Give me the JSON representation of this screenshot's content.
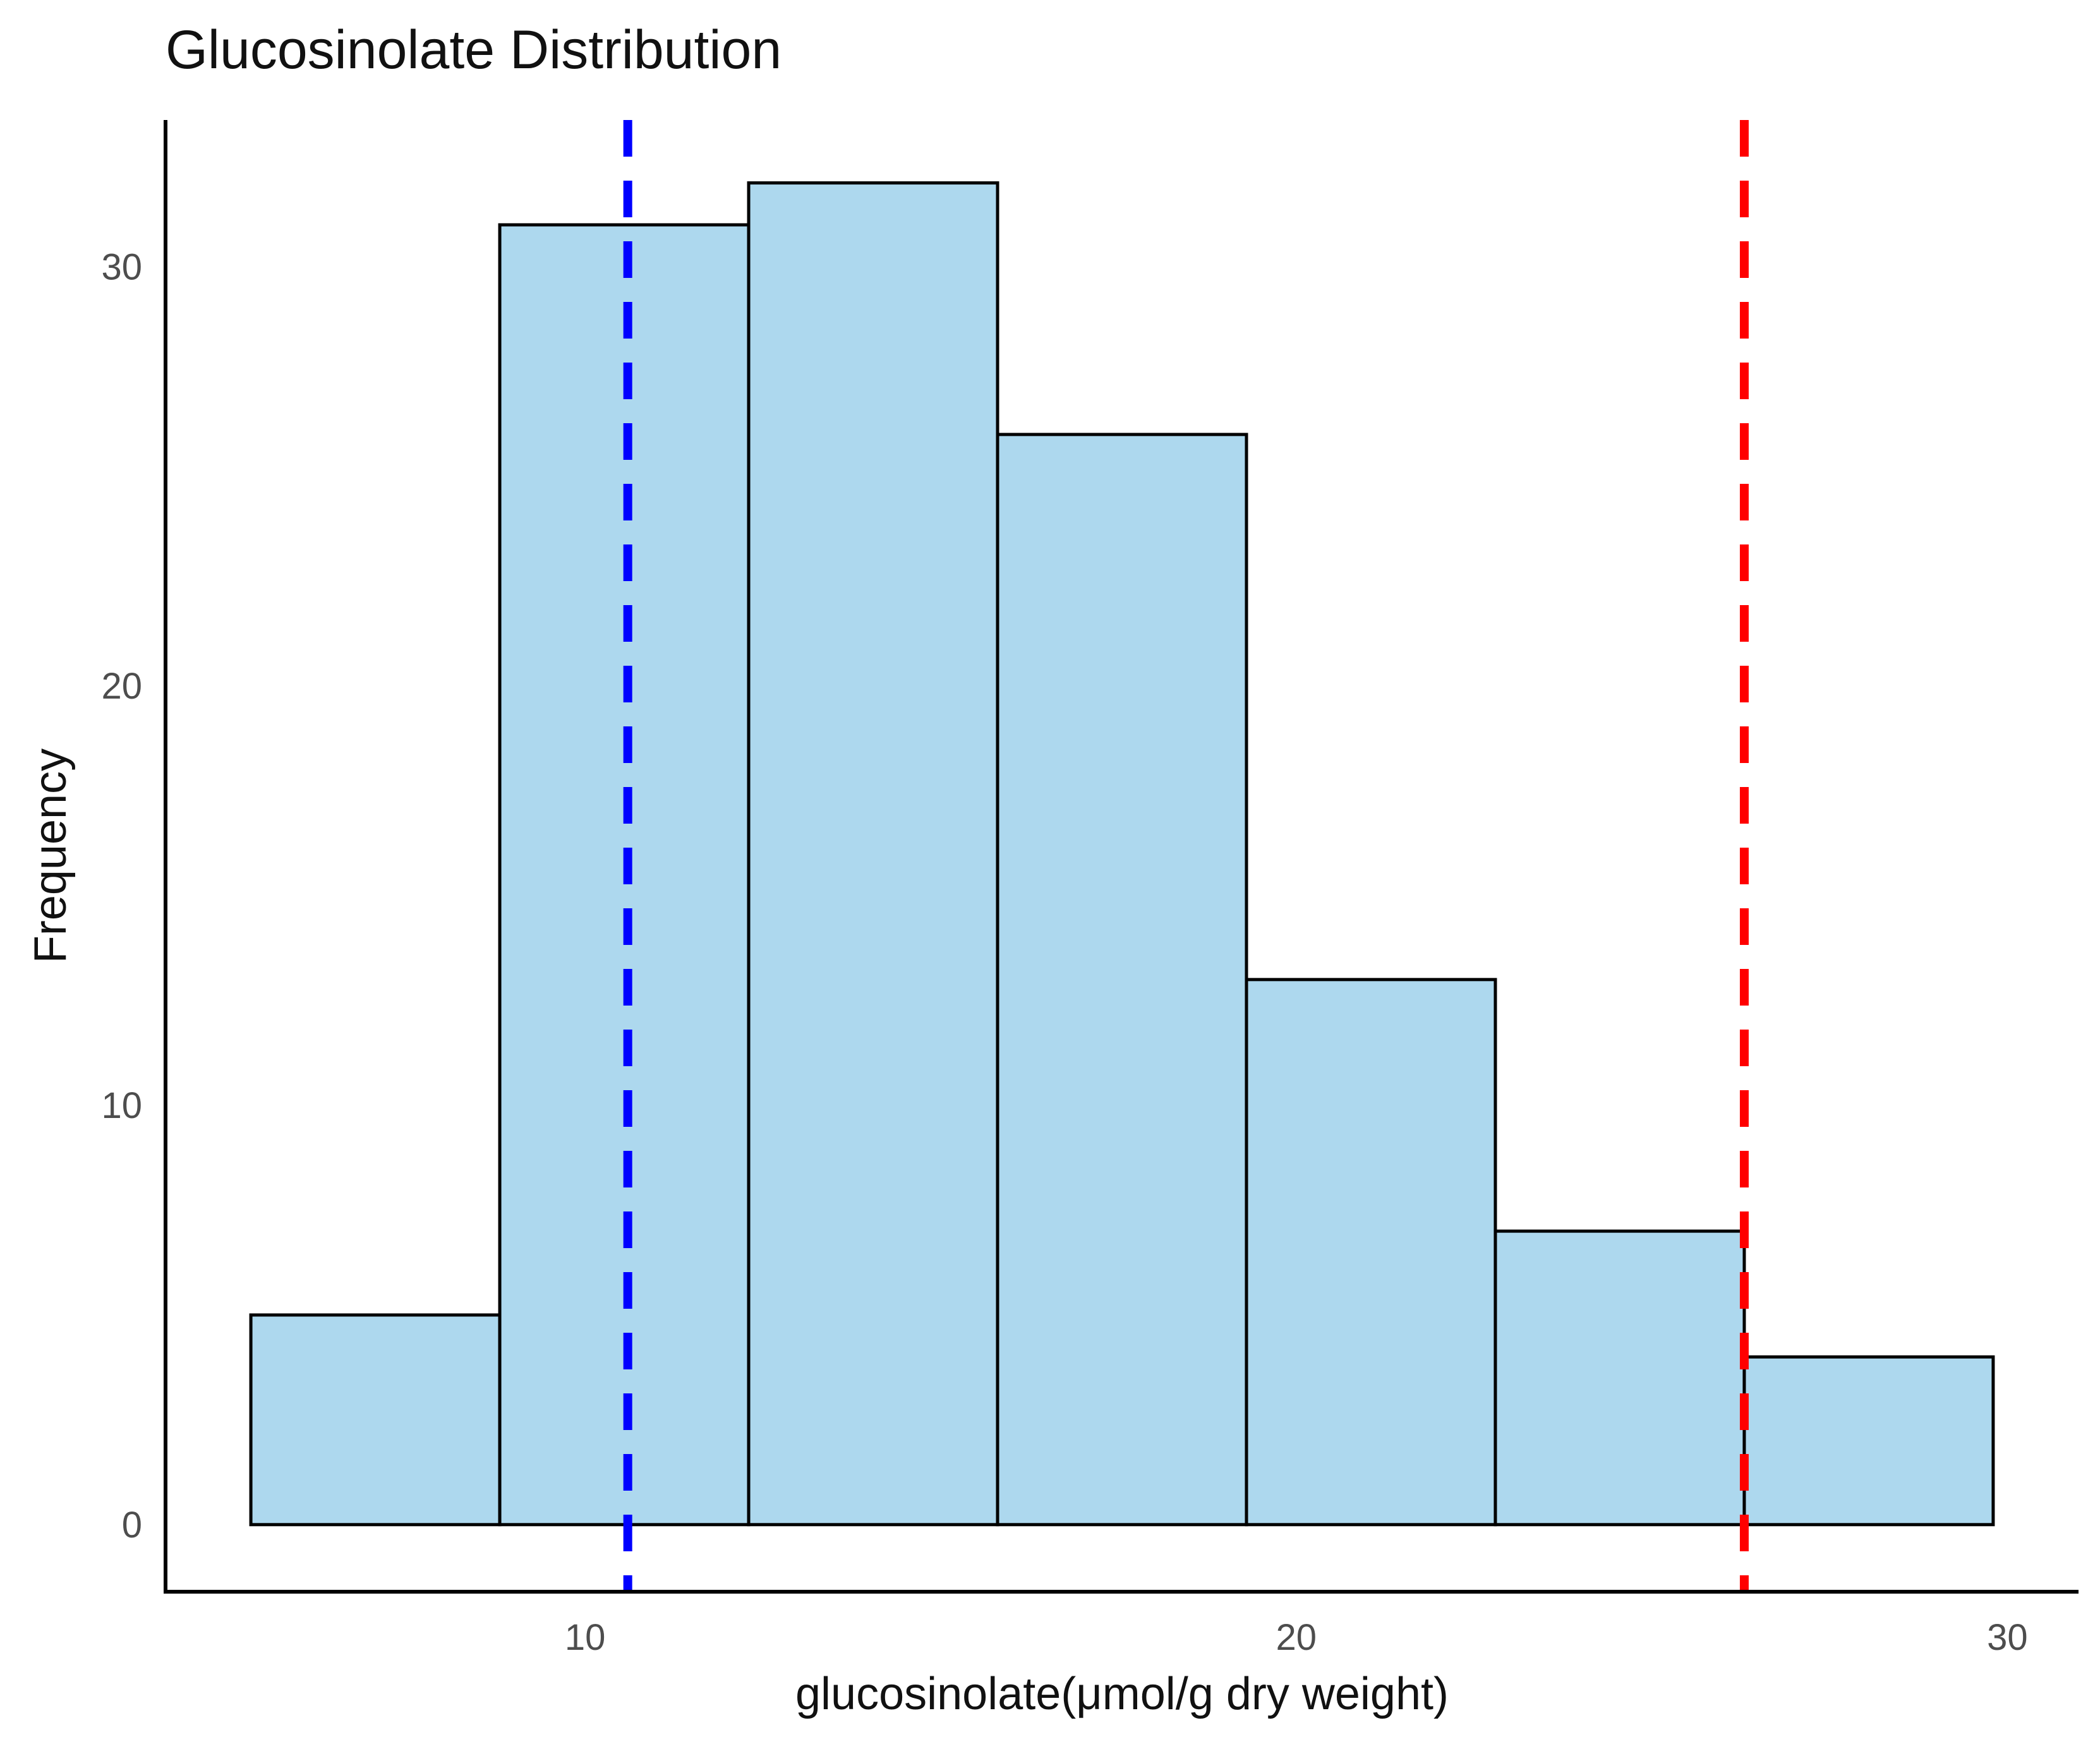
{
  "chart_data": {
    "type": "bar",
    "subtype": "histogram",
    "title": "Glucosinolate Distribution",
    "xlabel": "glucosinolate(μmol/g dry weight)",
    "ylabel": "Frequency",
    "xlim": [
      4.1,
      31.0
    ],
    "ylim": [
      -1.6,
      33.5
    ],
    "x_ticks": [
      {
        "value": 10,
        "label": "10"
      },
      {
        "value": 20,
        "label": "20"
      },
      {
        "value": 30,
        "label": "30"
      }
    ],
    "y_ticks": [
      {
        "value": 0,
        "label": "0"
      },
      {
        "value": 10,
        "label": "10"
      },
      {
        "value": 20,
        "label": "20"
      },
      {
        "value": 30,
        "label": "30"
      }
    ],
    "bins": [
      {
        "x0": 5.3,
        "x1": 8.8,
        "count": 5
      },
      {
        "x0": 8.8,
        "x1": 12.3,
        "count": 31
      },
      {
        "x0": 12.3,
        "x1": 15.8,
        "count": 32
      },
      {
        "x0": 15.8,
        "x1": 19.3,
        "count": 26
      },
      {
        "x0": 19.3,
        "x1": 22.8,
        "count": 13
      },
      {
        "x0": 22.8,
        "x1": 26.3,
        "count": 7
      },
      {
        "x0": 26.3,
        "x1": 29.8,
        "count": 4
      }
    ],
    "reference_lines": [
      {
        "x": 10.6,
        "color": "#0000ff",
        "style": "dashed"
      },
      {
        "x": 26.3,
        "color": "#ff0000",
        "style": "dashed"
      }
    ],
    "bar_fill": "#add8ee",
    "bar_stroke": "#000000",
    "grid": false,
    "legend": "none"
  }
}
